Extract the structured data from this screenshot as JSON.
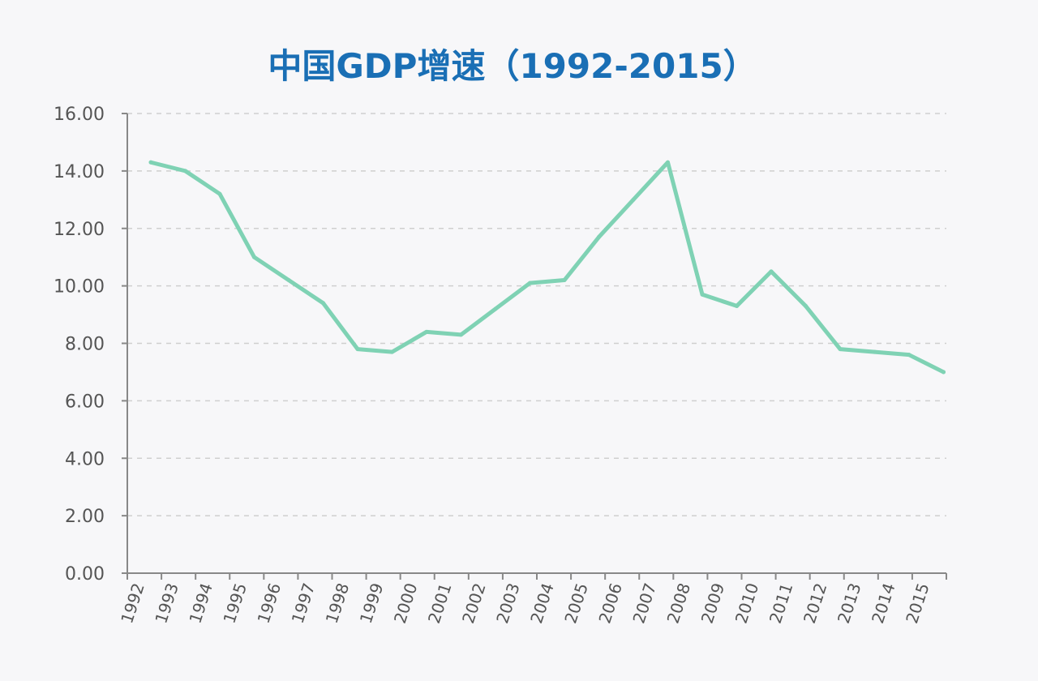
{
  "colors": {
    "background": "#f7f7f9",
    "title": "#1a6fb5",
    "line": "#7fd2b4",
    "axis": "#888888",
    "grid": "#cfcfcf",
    "tick_text": "#555555"
  },
  "chart_data": {
    "type": "line",
    "title": "中国GDP增速（1992-2015）",
    "xlabel": "",
    "ylabel": "",
    "ylim": [
      0,
      16
    ],
    "yticks": [
      "0.00",
      "2.00",
      "4.00",
      "6.00",
      "8.00",
      "10.00",
      "12.00",
      "14.00",
      "16.00"
    ],
    "grid": "horizontal dashed",
    "legend": "none",
    "categories": [
      "1992",
      "1993",
      "1994",
      "1995",
      "1996",
      "1997",
      "1998",
      "1999",
      "2000",
      "2001",
      "2002",
      "2003",
      "2004",
      "2005",
      "2006",
      "2007",
      "2008",
      "2009",
      "2010",
      "2011",
      "2012",
      "2013",
      "2014",
      "2015"
    ],
    "series": [
      {
        "values": [
          14.3,
          14.0,
          13.2,
          11.0,
          10.2,
          9.4,
          7.8,
          7.7,
          8.4,
          8.3,
          9.2,
          10.1,
          10.2,
          11.7,
          13.0,
          14.3,
          9.7,
          9.3,
          10.5,
          9.3,
          7.8,
          7.7,
          7.6,
          7.0
        ]
      }
    ]
  }
}
